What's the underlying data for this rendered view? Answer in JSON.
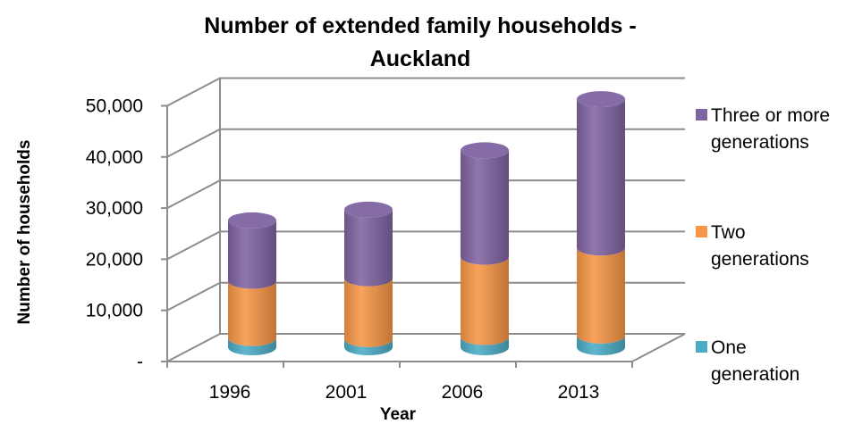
{
  "chart_data": {
    "type": "bar",
    "subtype": "stacked-3d-cylinder",
    "title": [
      "Number of extended family households -",
      "Auckland"
    ],
    "xlabel": "Year",
    "ylabel": "Number of households",
    "categories": [
      "1996",
      "2001",
      "2006",
      "2013"
    ],
    "ylim": [
      0,
      50000
    ],
    "yticks": [
      {
        "value": 0,
        "label": "-"
      },
      {
        "value": 10000,
        "label": "10,000"
      },
      {
        "value": 20000,
        "label": "20,000"
      },
      {
        "value": 30000,
        "label": "30,000"
      },
      {
        "value": 40000,
        "label": "40,000"
      },
      {
        "value": 50000,
        "label": "50,000"
      }
    ],
    "grid": true,
    "legend_position": "right",
    "series": [
      {
        "name": "One generation",
        "color": "#4bacc6",
        "values": [
          1800,
          1600,
          2000,
          2300
        ]
      },
      {
        "name": "Two generations",
        "color": "#f79646",
        "values": [
          11200,
          11900,
          15700,
          17200
        ]
      },
      {
        "name": "Three or more generations",
        "color": "#8064a2",
        "values": [
          11800,
          13400,
          20800,
          29000
        ]
      }
    ],
    "legend": [
      {
        "lines": [
          "Three or more",
          "generations"
        ],
        "color": "#8064a2"
      },
      {
        "lines": [
          "Two",
          "generations"
        ],
        "color": "#f79646"
      },
      {
        "lines": [
          "One",
          "generation"
        ],
        "color": "#4bacc6"
      }
    ]
  }
}
